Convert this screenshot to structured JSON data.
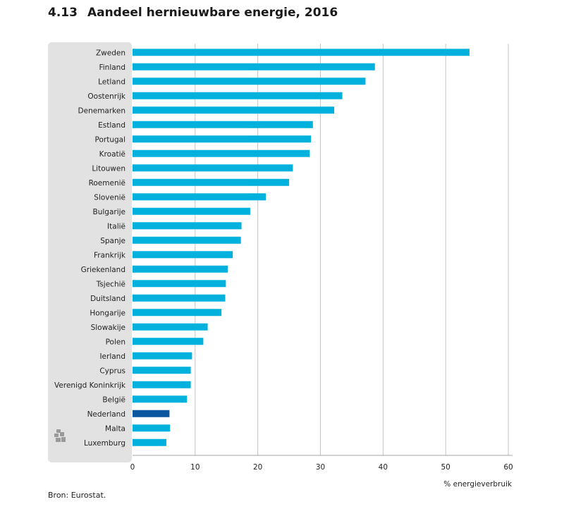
{
  "title": {
    "number": "4.13",
    "text": "Aandeel hernieuwbare energie, 2016"
  },
  "source": "Bron: Eurostat.",
  "colors": {
    "bar": "#00b1de",
    "highlight": "#0a57a0",
    "panel": "#e2e2e2",
    "grid": "#b8b8b8"
  },
  "icon": "cbs-logo-icon",
  "chart_data": {
    "type": "bar",
    "orientation": "horizontal",
    "categories": [
      "Zweden",
      "Finland",
      "Letland",
      "Oostenrijk",
      "Denemarken",
      "Estland",
      "Portugal",
      "Kroatië",
      "Litouwen",
      "Roemenië",
      "Slovenië",
      "Bulgarije",
      "Italië",
      "Spanje",
      "Frankrijk",
      "Griekenland",
      "Tsjechië",
      "Duitsland",
      "Hongarije",
      "Slowakije",
      "Polen",
      "Ierland",
      "Cyprus",
      "Verenigd Koninkrijk",
      "België",
      "Nederland",
      "Malta",
      "Luxemburg"
    ],
    "values": [
      53.8,
      38.7,
      37.2,
      33.5,
      32.2,
      28.8,
      28.5,
      28.3,
      25.6,
      25.0,
      21.3,
      18.8,
      17.4,
      17.3,
      16.0,
      15.2,
      14.9,
      14.8,
      14.2,
      12.0,
      11.3,
      9.5,
      9.3,
      9.3,
      8.7,
      5.9,
      6.0,
      5.4
    ],
    "highlight": "Nederland",
    "xlabel": "% energieverbruik",
    "ylabel": "",
    "xlim": [
      0,
      60
    ],
    "xticks": [
      0,
      10,
      20,
      30,
      40,
      50,
      60
    ],
    "grid": true
  }
}
